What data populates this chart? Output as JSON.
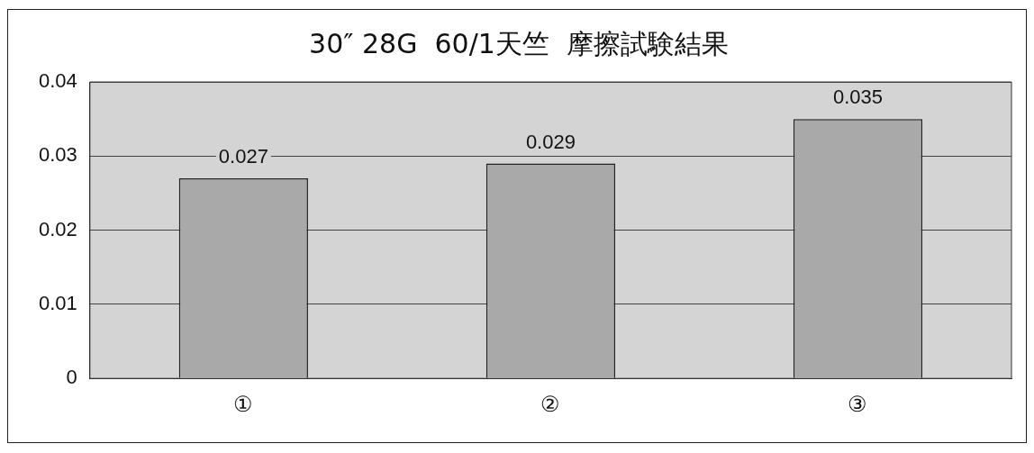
{
  "chart_data": {
    "type": "bar",
    "title": "30″ 28G  60/1天竺  摩擦試験結果",
    "categories": [
      "①",
      "②",
      "③"
    ],
    "values": [
      0.027,
      0.029,
      0.035
    ],
    "color": "#a9a9a9",
    "ylim": [
      0,
      0.04
    ],
    "yticks": [
      0,
      0.01,
      0.02,
      0.03,
      0.04
    ],
    "grid": "y",
    "data_labels": true
  }
}
